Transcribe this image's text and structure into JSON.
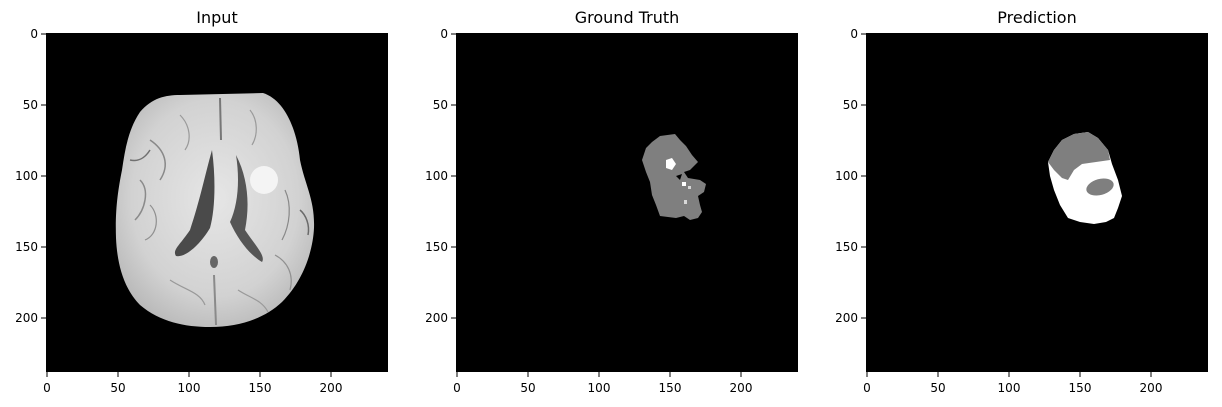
{
  "panels": [
    {
      "title": "Input",
      "image": "brain-mri-slice",
      "x_ticks": [
        "0",
        "50",
        "100",
        "150",
        "200"
      ],
      "y_ticks": [
        "0",
        "50",
        "100",
        "150",
        "200"
      ]
    },
    {
      "title": "Ground Truth",
      "image": "tumor-segmentation-mask",
      "x_ticks": [
        "0",
        "50",
        "100",
        "150",
        "200"
      ],
      "y_ticks": [
        "0",
        "50",
        "100",
        "150",
        "200"
      ]
    },
    {
      "title": "Prediction",
      "image": "predicted-segmentation-mask",
      "x_ticks": [
        "0",
        "50",
        "100",
        "150",
        "200"
      ],
      "y_ticks": [
        "0",
        "50",
        "100",
        "150",
        "200"
      ]
    }
  ],
  "colors": {
    "background": "#ffffff",
    "image_background": "#000000",
    "mask_gray": "#7f7f7f",
    "mask_white": "#ffffff"
  }
}
